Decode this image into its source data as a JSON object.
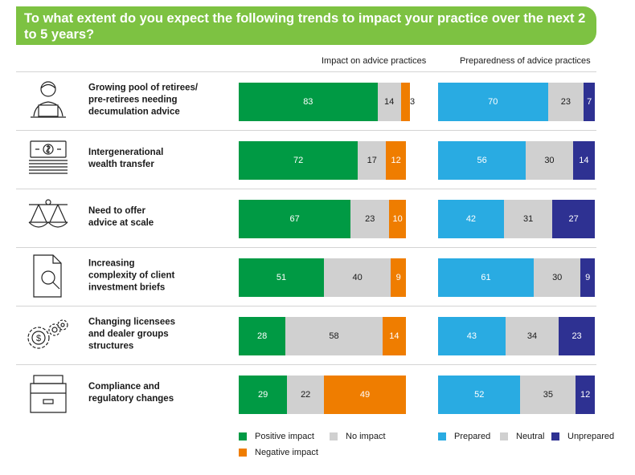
{
  "title": "To what extent do you expect the following trends to impact your practice over the next 2 to 5 years?",
  "chart_data": {
    "type": "bar",
    "orientation": "horizontal-stacked-100",
    "categories": [
      "Growing pool of retirees/ pre-retirees needing decumulation advice",
      "Intergenerational wealth transfer",
      "Need to offer advice at scale",
      "Increasing complexity of client investment briefs",
      "Changing licensees and dealer groups structures",
      "Compliance and regulatory changes"
    ],
    "panels": [
      {
        "title": "Impact on advice practices",
        "series": [
          {
            "name": "Positive impact",
            "color": "#009a44",
            "values": [
              83,
              72,
              67,
              51,
              28,
              29
            ]
          },
          {
            "name": "No impact",
            "color": "#d0d0d0",
            "values": [
              14,
              17,
              23,
              40,
              58,
              22
            ]
          },
          {
            "name": "Negative impact",
            "color": "#ef7d00",
            "values": [
              3,
              12,
              10,
              9,
              14,
              49
            ]
          }
        ]
      },
      {
        "title": "Preparedness of advice practices",
        "series": [
          {
            "name": "Prepared",
            "color": "#29abe2",
            "values": [
              70,
              56,
              42,
              61,
              43,
              52
            ]
          },
          {
            "name": "Neutral",
            "color": "#d0d0d0",
            "values": [
              23,
              30,
              31,
              30,
              34,
              35
            ]
          },
          {
            "name": "Unprepared",
            "color": "#2e3192",
            "values": [
              7,
              14,
              27,
              9,
              23,
              12
            ]
          }
        ]
      }
    ]
  },
  "labels": [
    [
      "Growing pool of retirees/",
      "pre-retirees needing",
      "decumulation advice"
    ],
    [
      "Intergenerational",
      "wealth transfer"
    ],
    [
      "Need to offer",
      "advice at scale"
    ],
    [
      "Increasing",
      "complexity of client",
      "investment briefs"
    ],
    [
      "Changing licensees",
      "and dealer groups",
      "structures"
    ],
    [
      "Compliance and",
      "regulatory changes"
    ]
  ],
  "icons": [
    "person-laptop-icon",
    "money-stack-icon",
    "balance-scale-icon",
    "document-search-icon",
    "gears-dollar-icon",
    "filing-cabinet-icon"
  ]
}
